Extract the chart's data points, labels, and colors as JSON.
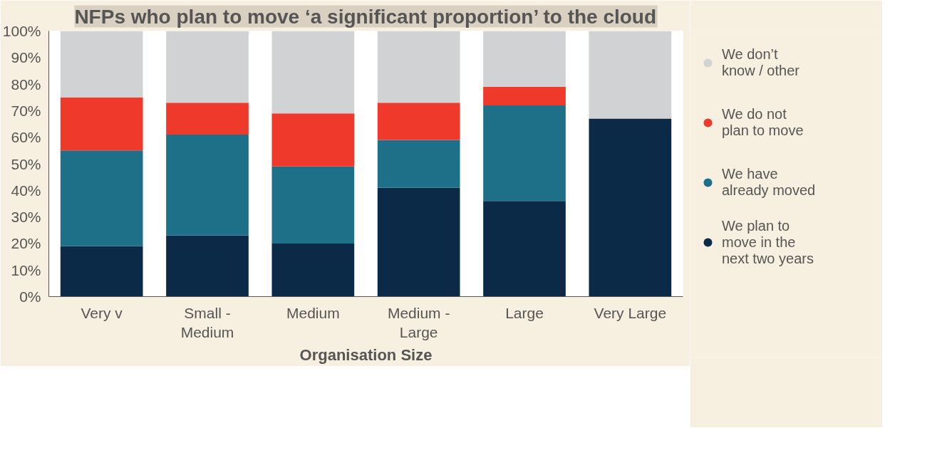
{
  "chart_data": {
    "type": "bar",
    "title": "NFPs who plan to move ‘a significant proportion’ to the cloud",
    "xlabel": "Organisation Size",
    "categories": [
      "Very v",
      "Small -\nMedium",
      "Medium",
      "Medium -\nLarge",
      "Large",
      "Very Large"
    ],
    "series": [
      {
        "name": "We plan to\nmove in the\nnext two years",
        "color": "#0a2a47",
        "values": [
          19,
          23,
          20,
          41,
          36,
          67
        ]
      },
      {
        "name": "We have\nalready moved",
        "color": "#1e7088",
        "values": [
          36,
          38,
          29,
          18,
          36,
          null
        ]
      },
      {
        "name": "We do not\nplan to move",
        "color": "#ee392b",
        "values": [
          20,
          12,
          20,
          14,
          7,
          null
        ]
      },
      {
        "name": "We don’t\nknow / other",
        "color": "#d1d2d4",
        "values": [
          25,
          27,
          31,
          27,
          21,
          33
        ]
      }
    ],
    "stacked": true,
    "ylim": [
      0,
      100
    ],
    "yticks": [
      {
        "value": 0,
        "label": "0%"
      },
      {
        "value": 10,
        "label": "10%"
      },
      {
        "value": 20,
        "label": "20%"
      },
      {
        "value": 30,
        "label": "30%"
      },
      {
        "value": 40,
        "label": "40%"
      },
      {
        "value": 50,
        "label": "50%"
      },
      {
        "value": 60,
        "label": "60%"
      },
      {
        "value": 70,
        "label": "70%"
      },
      {
        "value": 80,
        "label": "80%"
      },
      {
        "value": 90,
        "label": "90%"
      },
      {
        "value": 100,
        "label": "100%"
      }
    ],
    "grid": false,
    "legend": "right"
  }
}
